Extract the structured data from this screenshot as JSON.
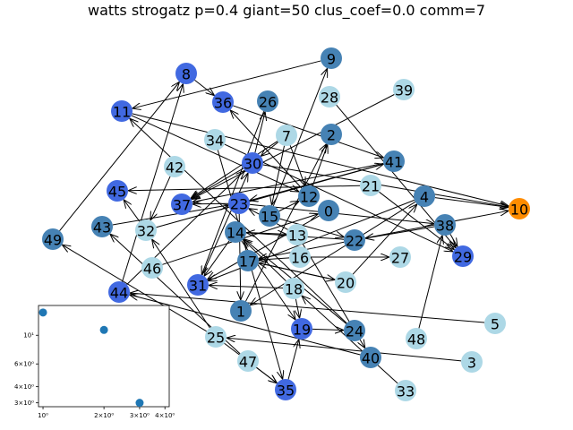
{
  "title": "watts strogatz p=0.4 giant=50 clus_coef=0.0 comm=7",
  "colors": {
    "light": "#add8e6",
    "steel": "#4682b4",
    "royal": "#4169e1",
    "orange": "#ff8c00",
    "edge": "#000000",
    "inset_marker": "#1f77b4"
  },
  "nodes": [
    {
      "id": "0",
      "c": "steel"
    },
    {
      "id": "1",
      "c": "steel"
    },
    {
      "id": "2",
      "c": "steel"
    },
    {
      "id": "3",
      "c": "light"
    },
    {
      "id": "4",
      "c": "steel"
    },
    {
      "id": "5",
      "c": "light"
    },
    {
      "id": "7",
      "c": "light"
    },
    {
      "id": "8",
      "c": "royal"
    },
    {
      "id": "9",
      "c": "steel"
    },
    {
      "id": "10",
      "c": "orange"
    },
    {
      "id": "11",
      "c": "royal"
    },
    {
      "id": "12",
      "c": "steel"
    },
    {
      "id": "13",
      "c": "light"
    },
    {
      "id": "14",
      "c": "steel"
    },
    {
      "id": "15",
      "c": "steel"
    },
    {
      "id": "16",
      "c": "light"
    },
    {
      "id": "17",
      "c": "steel"
    },
    {
      "id": "18",
      "c": "light"
    },
    {
      "id": "19",
      "c": "royal"
    },
    {
      "id": "20",
      "c": "light"
    },
    {
      "id": "21",
      "c": "light"
    },
    {
      "id": "22",
      "c": "steel"
    },
    {
      "id": "23",
      "c": "royal"
    },
    {
      "id": "24",
      "c": "steel"
    },
    {
      "id": "25",
      "c": "light"
    },
    {
      "id": "26",
      "c": "steel"
    },
    {
      "id": "27",
      "c": "light"
    },
    {
      "id": "28",
      "c": "light"
    },
    {
      "id": "29",
      "c": "royal"
    },
    {
      "id": "30",
      "c": "royal"
    },
    {
      "id": "31",
      "c": "royal"
    },
    {
      "id": "32",
      "c": "light"
    },
    {
      "id": "33",
      "c": "light"
    },
    {
      "id": "34",
      "c": "light"
    },
    {
      "id": "35",
      "c": "royal"
    },
    {
      "id": "36",
      "c": "royal"
    },
    {
      "id": "37",
      "c": "royal"
    },
    {
      "id": "38",
      "c": "steel"
    },
    {
      "id": "39",
      "c": "light"
    },
    {
      "id": "40",
      "c": "steel"
    },
    {
      "id": "41",
      "c": "steel"
    },
    {
      "id": "42",
      "c": "light"
    },
    {
      "id": "43",
      "c": "steel"
    },
    {
      "id": "44",
      "c": "royal"
    },
    {
      "id": "45",
      "c": "royal"
    },
    {
      "id": "46",
      "c": "light"
    },
    {
      "id": "47",
      "c": "light"
    },
    {
      "id": "48",
      "c": "light"
    },
    {
      "id": "49",
      "c": "steel"
    }
  ],
  "edges": [
    [
      "9",
      "11"
    ],
    [
      "8",
      "36"
    ],
    [
      "36",
      "41"
    ],
    [
      "7",
      "37"
    ],
    [
      "7",
      "30"
    ],
    [
      "7",
      "12"
    ],
    [
      "7",
      "15"
    ],
    [
      "30",
      "26"
    ],
    [
      "30",
      "10"
    ],
    [
      "30",
      "37"
    ],
    [
      "39",
      "37"
    ],
    [
      "34",
      "29"
    ],
    [
      "34",
      "35"
    ],
    [
      "11",
      "10"
    ],
    [
      "11",
      "12"
    ],
    [
      "21",
      "45"
    ],
    [
      "21",
      "29"
    ],
    [
      "41",
      "37"
    ],
    [
      "41",
      "23"
    ],
    [
      "15",
      "9"
    ],
    [
      "15",
      "22"
    ],
    [
      "15",
      "12"
    ],
    [
      "12",
      "2"
    ],
    [
      "12",
      "36"
    ],
    [
      "23",
      "38"
    ],
    [
      "23",
      "37"
    ],
    [
      "23",
      "1"
    ],
    [
      "0",
      "31"
    ],
    [
      "22",
      "10"
    ],
    [
      "22",
      "14"
    ],
    [
      "22",
      "17"
    ],
    [
      "4",
      "10"
    ],
    [
      "4",
      "1"
    ],
    [
      "4",
      "31"
    ],
    [
      "38",
      "22"
    ],
    [
      "38",
      "29"
    ],
    [
      "48",
      "38"
    ],
    [
      "14",
      "13"
    ],
    [
      "14",
      "31"
    ],
    [
      "14",
      "19"
    ],
    [
      "13",
      "23"
    ],
    [
      "13",
      "40"
    ],
    [
      "16",
      "27"
    ],
    [
      "16",
      "17"
    ],
    [
      "18",
      "31"
    ],
    [
      "18",
      "19"
    ],
    [
      "18",
      "14"
    ],
    [
      "24",
      "14"
    ],
    [
      "20",
      "17"
    ],
    [
      "5",
      "44"
    ],
    [
      "17",
      "20"
    ],
    [
      "19",
      "24"
    ],
    [
      "40",
      "44"
    ],
    [
      "3",
      "25"
    ],
    [
      "25",
      "32"
    ],
    [
      "25",
      "35"
    ],
    [
      "47",
      "43"
    ],
    [
      "47",
      "35"
    ],
    [
      "35",
      "19"
    ],
    [
      "44",
      "30"
    ],
    [
      "44",
      "8"
    ],
    [
      "46",
      "0"
    ],
    [
      "31",
      "30"
    ],
    [
      "43",
      "23"
    ],
    [
      "32",
      "45"
    ],
    [
      "32",
      "41"
    ],
    [
      "49",
      "8"
    ],
    [
      "24",
      "11"
    ],
    [
      "28",
      "29"
    ],
    [
      "42",
      "32"
    ],
    [
      "26",
      "31"
    ],
    [
      "33",
      "18"
    ],
    [
      "25",
      "49"
    ],
    [
      "20",
      "4"
    ],
    [
      "1",
      "2"
    ]
  ],
  "inset": {
    "xticks": [
      "10⁰",
      "2×10⁰",
      "3×10⁰",
      "4×10⁰"
    ],
    "yticks": [
      "10¹",
      "6×10⁰",
      "4×10⁰",
      "3×10⁰"
    ],
    "points": [
      [
        1,
        15
      ],
      [
        2,
        11
      ],
      [
        3,
        3
      ]
    ]
  }
}
